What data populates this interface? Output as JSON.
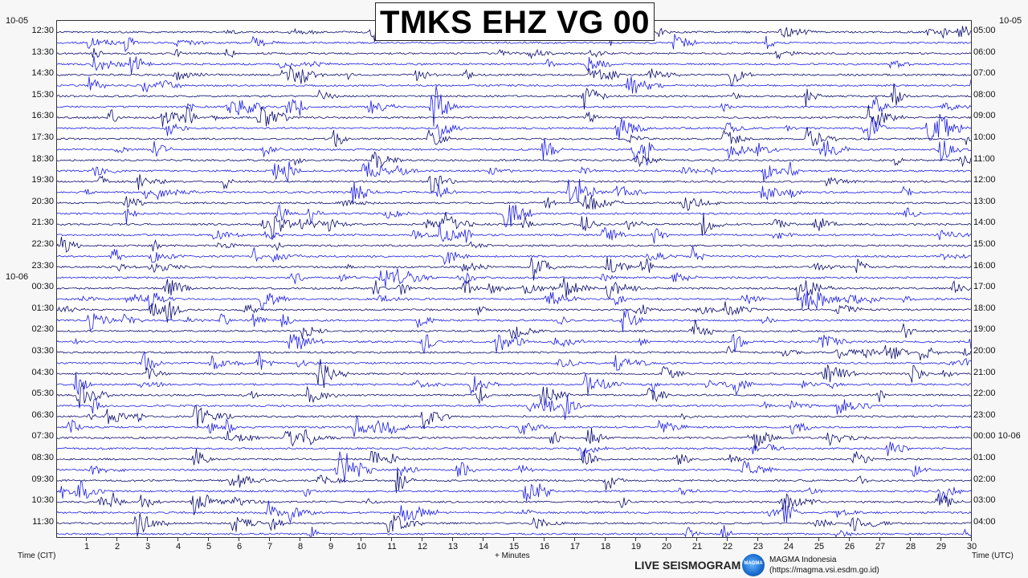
{
  "title": "TMKS EHZ VG 00",
  "colors": {
    "trace_a": "#0a0a6e",
    "trace_b": "#1a1ae6",
    "background": "#ffffff"
  },
  "chart_data": {
    "type": "line",
    "description_kind": "helicorder",
    "left_date_top": "10-05",
    "left_date_mid": "10-06",
    "right_date_top": "10-05",
    "right_date_mid": "10-06",
    "left_labels": [
      "12:30",
      "13:30",
      "14:30",
      "15:30",
      "16:30",
      "17:30",
      "18:30",
      "19:30",
      "20:30",
      "21:30",
      "22:30",
      "23:30",
      "00:30",
      "01:30",
      "02:30",
      "03:30",
      "04:30",
      "05:30",
      "06:30",
      "07:30",
      "08:30",
      "09:30",
      "10:30",
      "11:30"
    ],
    "right_labels": [
      "05:00",
      "06:00",
      "07:00",
      "08:00",
      "09:00",
      "10:00",
      "11:00",
      "12:00",
      "13:00",
      "14:00",
      "15:00",
      "16:00",
      "17:00",
      "18:00",
      "19:00",
      "20:00",
      "21:00",
      "22:00",
      "23:00",
      "00:00 10-06",
      "01:00",
      "02:00",
      "03:00",
      "04:00"
    ],
    "x_ticks": [
      "1",
      "2",
      "3",
      "4",
      "5",
      "6",
      "7",
      "8",
      "9",
      "10",
      "11",
      "12",
      "13",
      "14",
      "15",
      "16",
      "17",
      "18",
      "19",
      "20",
      "21",
      "22",
      "23",
      "24",
      "25",
      "26",
      "27",
      "28",
      "29",
      "30"
    ],
    "x_range": [
      0,
      30
    ],
    "rows_total": 48,
    "xlabel": "+ Minutes",
    "left_axis_label": "Time (CIT)",
    "right_axis_label": "Time (UTC)"
  },
  "footer": {
    "live": "LIVE SEISMOGRAM",
    "org": "MAGMA Indonesia",
    "url": "(https://magma.vsi.esdm.go.id)",
    "logo_text": "MAGMA"
  }
}
